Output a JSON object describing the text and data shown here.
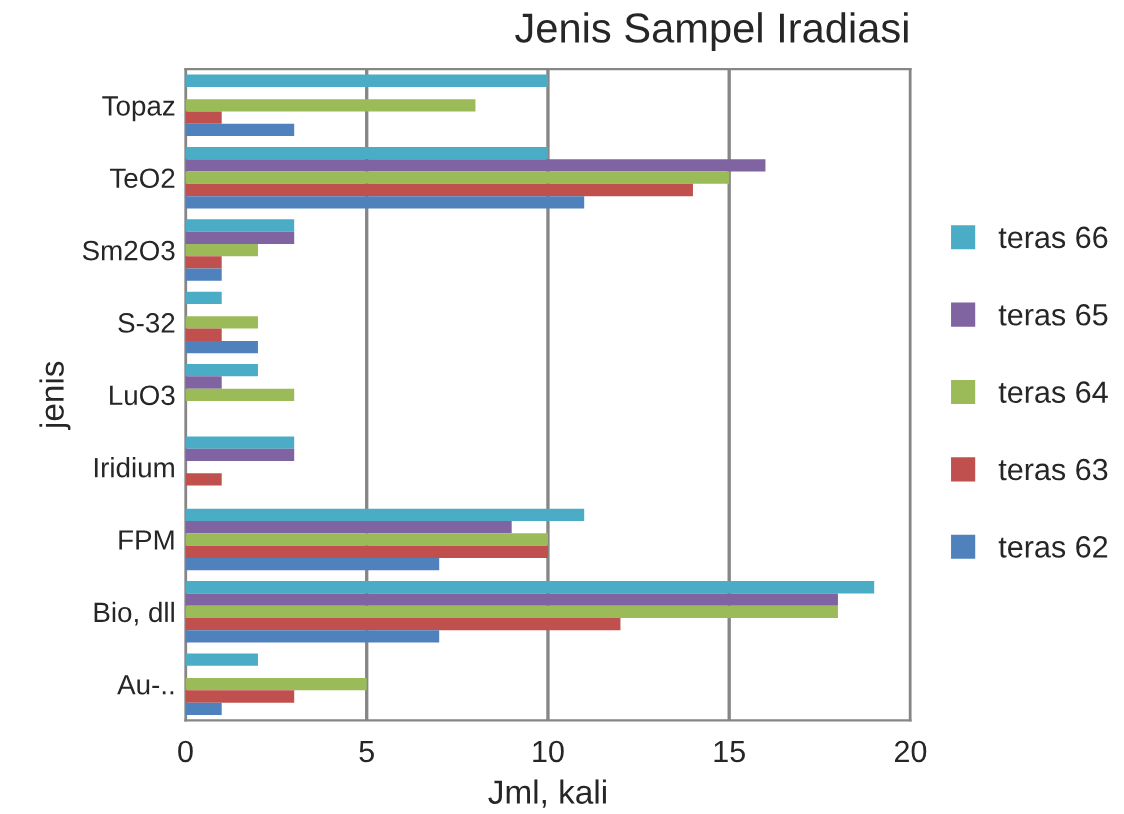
{
  "chart_data": {
    "type": "bar",
    "orientation": "horizontal",
    "title": "Jenis Sampel Iradiasi",
    "xlabel": "Jml, kali",
    "ylabel": "jenis",
    "categories": [
      "Topaz",
      "TeO2",
      "Sm2O3",
      "S-32",
      "LuO3",
      "Iridium",
      "FPM",
      "Bio, dll",
      "Au-.."
    ],
    "series": [
      {
        "name": "teras 66",
        "color": "#4bacc6",
        "values": [
          10,
          10,
          3,
          1,
          2,
          3,
          11,
          19,
          2
        ]
      },
      {
        "name": "teras 65",
        "color": "#8064a2",
        "values": [
          0,
          16,
          3,
          0,
          1,
          3,
          9,
          18,
          0
        ]
      },
      {
        "name": "teras 64",
        "color": "#9bbb59",
        "values": [
          8,
          15,
          2,
          2,
          3,
          0,
          10,
          18,
          5
        ]
      },
      {
        "name": "teras 63",
        "color": "#c0504d",
        "values": [
          1,
          14,
          1,
          1,
          0,
          1,
          10,
          12,
          3
        ]
      },
      {
        "name": "teras 62",
        "color": "#4f81bd",
        "values": [
          3,
          11,
          1,
          2,
          0,
          0,
          7,
          7,
          1
        ]
      }
    ],
    "xlim": [
      0,
      20
    ],
    "xticks": [
      0,
      5,
      10,
      15,
      20
    ],
    "grid": "x",
    "legend": "right"
  }
}
